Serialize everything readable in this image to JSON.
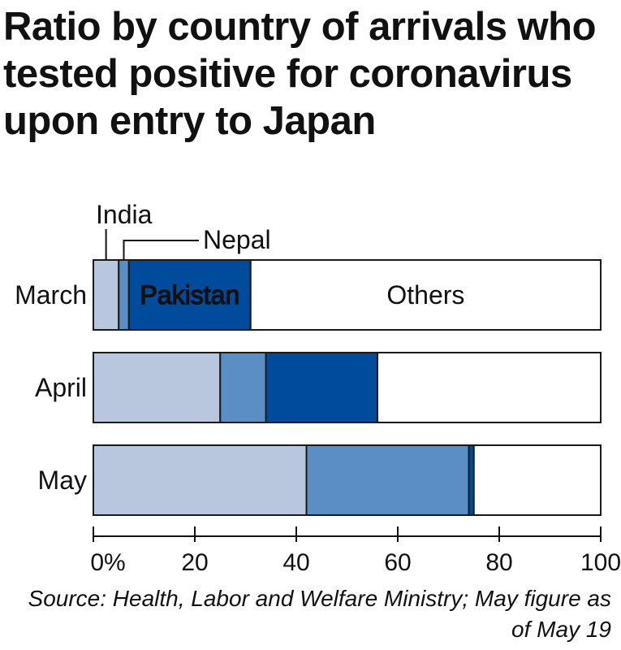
{
  "chart_data": {
    "type": "bar",
    "stacked": true,
    "orientation": "horizontal",
    "title": "Ratio by country of arrivals who tested positive for coronavirus upon entry to Japan",
    "categories": [
      "March",
      "April",
      "May"
    ],
    "series": [
      {
        "name": "India",
        "values": [
          5,
          25,
          42
        ],
        "color": "#b8c6de"
      },
      {
        "name": "Nepal",
        "values": [
          2,
          9,
          32
        ],
        "color": "#5b8ec4"
      },
      {
        "name": "Pakistan",
        "values": [
          24,
          22,
          1
        ],
        "color": "#004b9b"
      },
      {
        "name": "Others",
        "values": [
          69,
          44,
          25
        ],
        "color": "#ffffff"
      }
    ],
    "xlim": [
      0,
      100
    ],
    "xticks": [
      0,
      20,
      40,
      60,
      80,
      100
    ],
    "xtick_labels": [
      "0%",
      "20",
      "40",
      "60",
      "80",
      "100"
    ],
    "source": "Source: Health, Labor and Welfare Ministry; May figure as of May 19"
  }
}
